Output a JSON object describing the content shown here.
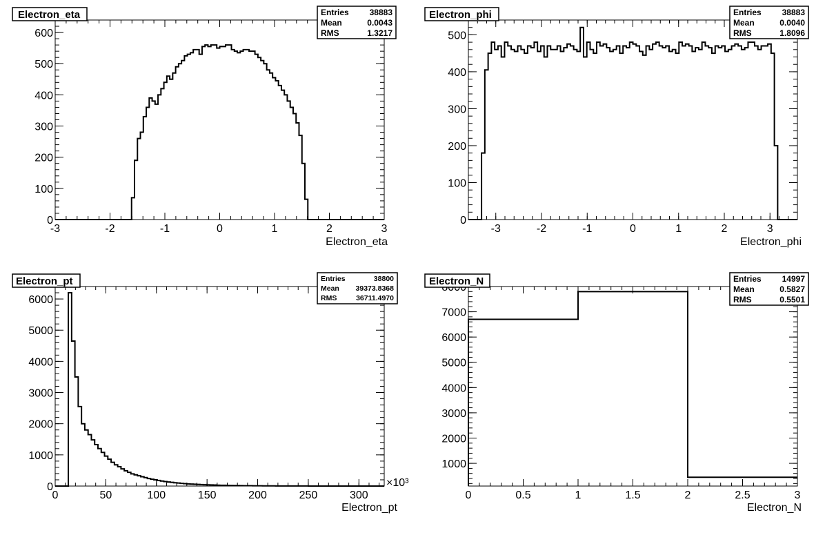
{
  "chart_data": [
    {
      "type": "histogram",
      "title": "Electron_eta",
      "xlabel": "Electron_eta",
      "ylabel": "",
      "xlim": [
        -3,
        3
      ],
      "ylim": [
        0,
        640
      ],
      "xticks": [
        "-3",
        "-2",
        "-1",
        "0",
        "1",
        "2",
        "3"
      ],
      "yticks": [
        "0",
        "100",
        "200",
        "300",
        "400",
        "500",
        "600"
      ],
      "bins": 100,
      "values": [
        0,
        0,
        0,
        0,
        0,
        0,
        0,
        0,
        0,
        0,
        0,
        0,
        0,
        0,
        0,
        0,
        0,
        0,
        0,
        0,
        0,
        0,
        0,
        0,
        0,
        0,
        70,
        190,
        260,
        280,
        330,
        360,
        390,
        380,
        370,
        400,
        420,
        440,
        460,
        450,
        470,
        490,
        500,
        510,
        525,
        530,
        535,
        545,
        545,
        530,
        555,
        560,
        555,
        560,
        560,
        550,
        555,
        555,
        560,
        560,
        545,
        540,
        535,
        540,
        545,
        545,
        540,
        540,
        530,
        520,
        510,
        500,
        480,
        470,
        455,
        445,
        430,
        415,
        400,
        380,
        360,
        340,
        310,
        270,
        180,
        65,
        0,
        0,
        0,
        0,
        0,
        0,
        0,
        0,
        0,
        0,
        0,
        0,
        0,
        0,
        0,
        0,
        0,
        0,
        0,
        0,
        0,
        0,
        0,
        0,
        0,
        0
      ],
      "stats": {
        "entries_label": "Entries",
        "entries": "38883",
        "mean_label": "Mean",
        "mean": "0.0043",
        "rms_label": "RMS",
        "rms": "1.3217"
      }
    },
    {
      "type": "histogram",
      "title": "Electron_phi",
      "xlabel": "Electron_phi",
      "ylabel": "",
      "xlim": [
        -3.6,
        3.6
      ],
      "ylim": [
        0,
        540
      ],
      "xticks": [
        "-3",
        "-2",
        "-1",
        "0",
        "1",
        "2",
        "3"
      ],
      "yticks": [
        "0",
        "100",
        "200",
        "300",
        "400",
        "500"
      ],
      "bins": 100,
      "values": [
        0,
        0,
        0,
        0,
        180,
        405,
        450,
        480,
        460,
        470,
        440,
        480,
        470,
        460,
        455,
        470,
        460,
        450,
        470,
        465,
        480,
        455,
        470,
        440,
        470,
        460,
        460,
        470,
        455,
        465,
        475,
        470,
        460,
        455,
        520,
        440,
        480,
        460,
        450,
        480,
        470,
        475,
        465,
        455,
        460,
        470,
        450,
        470,
        465,
        480,
        475,
        470,
        455,
        445,
        470,
        460,
        475,
        480,
        470,
        465,
        470,
        455,
        460,
        450,
        480,
        470,
        475,
        470,
        455,
        465,
        460,
        480,
        470,
        465,
        450,
        470,
        465,
        470,
        455,
        460,
        470,
        475,
        470,
        460,
        465,
        480,
        480,
        470,
        460,
        470,
        470,
        475,
        450,
        200,
        0,
        0,
        0,
        0,
        0,
        0
      ]
    },
    {
      "type": "histogram",
      "title": "Electron_pt",
      "xlabel": "Electron_pt",
      "ylabel": "",
      "xlim": [
        0,
        325
      ],
      "ylim": [
        0,
        6400
      ],
      "x_multiplier": "×10³",
      "xticks": [
        "0",
        "50",
        "100",
        "150",
        "200",
        "250",
        "300"
      ],
      "yticks": [
        "0",
        "1000",
        "2000",
        "3000",
        "4000",
        "5000",
        "6000"
      ],
      "bins": 100,
      "values": [
        0,
        0,
        0,
        0,
        6200,
        4650,
        3500,
        2550,
        2000,
        1800,
        1650,
        1480,
        1330,
        1200,
        1080,
        960,
        860,
        760,
        680,
        620,
        550,
        490,
        440,
        390,
        360,
        330,
        300,
        270,
        240,
        220,
        200,
        180,
        160,
        145,
        130,
        118,
        106,
        96,
        86,
        78,
        70,
        64,
        58,
        52,
        47,
        42,
        38,
        35,
        32,
        29,
        26,
        24,
        22,
        20,
        18,
        16,
        14,
        12,
        11,
        10,
        9,
        8,
        7,
        6,
        6,
        5,
        5,
        4,
        4,
        3,
        3,
        3,
        2,
        2,
        2,
        2,
        2,
        1,
        1,
        1,
        1,
        1,
        1,
        1,
        1,
        0,
        0,
        0,
        0,
        0,
        0,
        0,
        0,
        0,
        0,
        0,
        0,
        0,
        0,
        0
      ],
      "stats": {
        "entries_label": "Entries",
        "entries": "38800",
        "mean_label": "Mean",
        "mean": "39373.8368",
        "rms_label": "RMS",
        "rms": "36711.4970"
      }
    },
    {
      "type": "histogram",
      "title": "Electron_N",
      "xlabel": "Electron_N",
      "ylabel": "",
      "xlim": [
        0,
        3
      ],
      "ylim": [
        100,
        8000
      ],
      "xticks": [
        "0",
        "0.5",
        "1",
        "1.5",
        "2",
        "2.5",
        "3"
      ],
      "yticks": [
        "1000",
        "2000",
        "3000",
        "4000",
        "5000",
        "6000",
        "7000",
        "8000"
      ],
      "bins": 3,
      "values": [
        6700,
        7800,
        450
      ],
      "stats": {
        "entries_label": "Entries",
        "entries": "14997",
        "mean_label": "Mean",
        "mean": "0.5827",
        "rms_label": "RMS",
        "rms": "0.5501"
      }
    }
  ],
  "phi_stats": {
    "entries_label": "Entries",
    "entries": "38883",
    "mean_label": "Mean",
    "mean": "0.0040",
    "rms_label": "RMS",
    "rms": "1.8096"
  }
}
